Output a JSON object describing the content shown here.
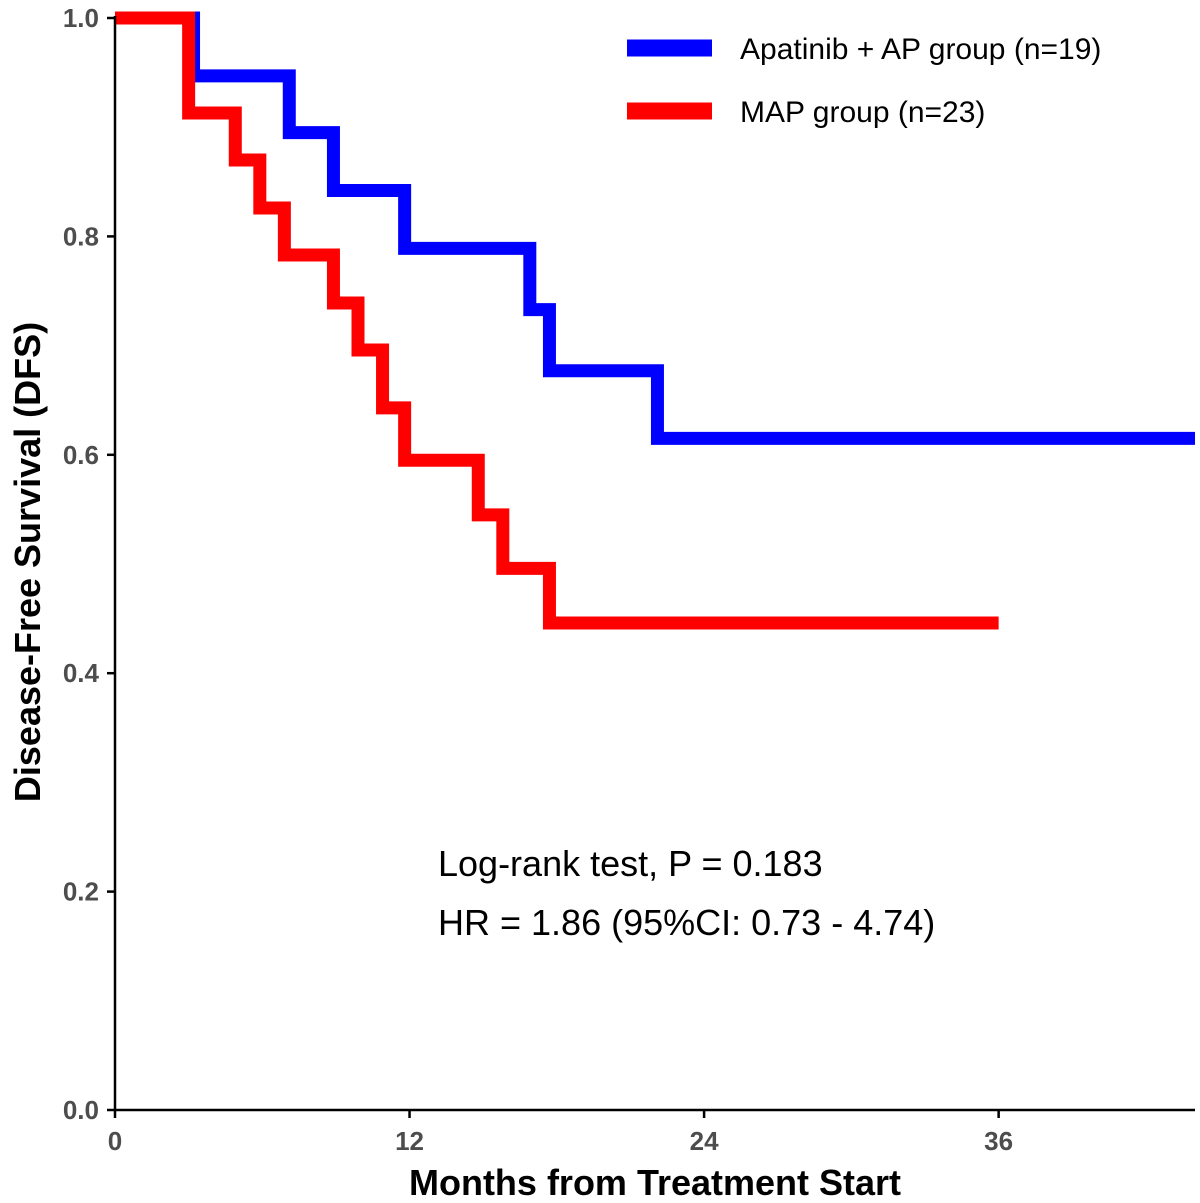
{
  "chart_data": {
    "type": "line",
    "subtype": "kaplan-meier step",
    "title": "",
    "xlabel": "Months from Treatment Start",
    "ylabel": "Disease-Free Survival (DFS)",
    "xlim": [
      0,
      44
    ],
    "ylim": [
      0,
      1
    ],
    "xticks": [
      0,
      12,
      24,
      36
    ],
    "xtick_labels": [
      "0",
      "12",
      "24",
      "36"
    ],
    "yticks": [
      0,
      0.2,
      0.4,
      0.6,
      0.8,
      1.0
    ],
    "ytick_labels": [
      "0.0",
      "0.2",
      "0.4",
      "0.6",
      "0.8",
      "1.0"
    ],
    "legend_position": "top-right",
    "series": [
      {
        "name": "Apatinib + AP group (n=19)",
        "color": "#0000ff",
        "x": [
          0,
          3.2,
          7.1,
          8.9,
          11.8,
          16.9,
          17.7,
          22.1,
          44
        ],
        "y": [
          1.0,
          0.947,
          0.895,
          0.842,
          0.789,
          0.733,
          0.677,
          0.615,
          0.615
        ]
      },
      {
        "name": "MAP group (n=23)",
        "color": "#ff0000",
        "x": [
          0,
          3.0,
          4.9,
          5.9,
          6.9,
          8.9,
          9.9,
          10.9,
          11.8,
          14.8,
          15.8,
          17.7,
          36
        ],
        "y": [
          1.0,
          0.913,
          0.87,
          0.826,
          0.783,
          0.739,
          0.696,
          0.643,
          0.595,
          0.545,
          0.496,
          0.446,
          0.446
        ]
      }
    ],
    "annotations": [
      "Log-rank test, P = 0.183",
      "HR = 1.86 (95%CI: 0.73 - 4.74)"
    ]
  }
}
